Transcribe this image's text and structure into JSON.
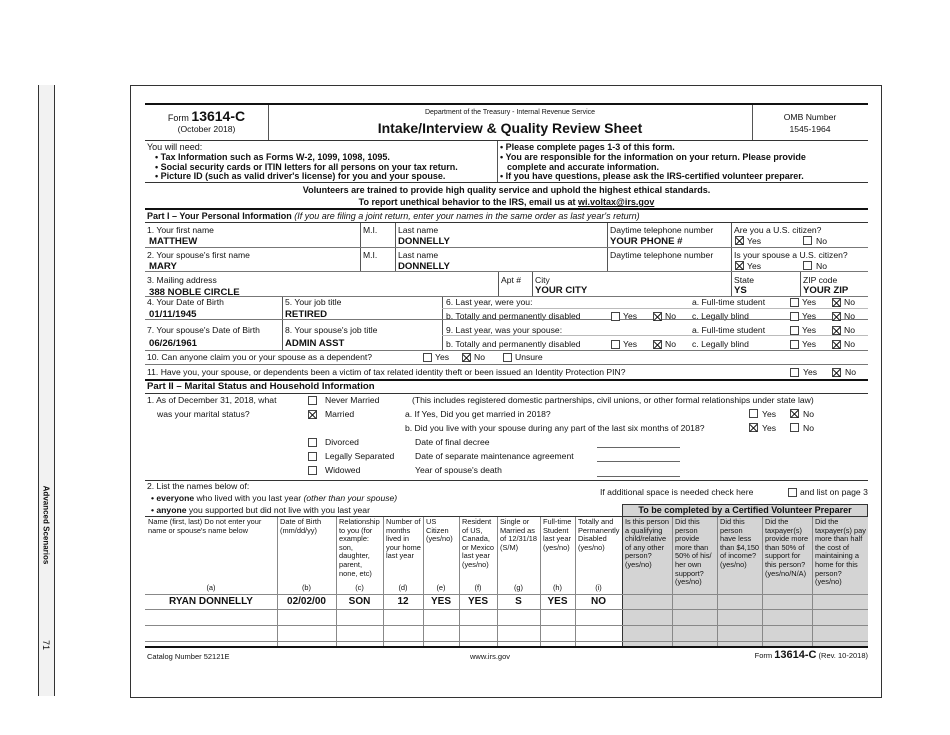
{
  "margin": {
    "section": "Advanced Scenarios",
    "page": "71"
  },
  "header": {
    "form_label": "Form",
    "form_number": "13614-C",
    "form_date": "(October 2018)",
    "department": "Department of the Treasury - Internal Revenue Service",
    "title": "Intake/Interview & Quality Review Sheet",
    "omb_label": "OMB Number",
    "omb_number": "1545-1964"
  },
  "need": {
    "heading": "You will need:",
    "items": [
      "• Tax Information such as Forms W-2, 1099, 1098, 1095.",
      "• Social security cards or ITIN letters for all persons on your tax return.",
      "• Picture ID (such as valid driver's license) for you and your spouse."
    ],
    "right_items": [
      "• Please complete pages 1-3 of this form.",
      "• You are responsible for the information on your return. Please provide",
      "complete and accurate information.",
      "• If you have questions, please ask the IRS-certified volunteer preparer."
    ]
  },
  "volunteers": {
    "line1": "Volunteers are trained to provide high quality service and uphold the highest ethical standards.",
    "line2": "To report unethical behavior to the IRS, email us at",
    "email": "wi.voltax@irs.gov"
  },
  "part1": {
    "title": "Part I – Your Personal Information",
    "note": "(If you are filing a joint return, enter your names in the same order as last year's return)",
    "first_name_label": "1. Your first name",
    "first_name": "MATTHEW",
    "mi_label": "M.I.",
    "last_name_label": "Last name",
    "last_name": "DONNELLY",
    "phone_label": "Daytime telephone number",
    "phone": "YOUR PHONE #",
    "citizen_label": "Are you a U.S. citizen?",
    "citizen_yes": true,
    "citizen_no": false,
    "spouse_first_label": "2. Your spouse's first name",
    "spouse_first": "MARY",
    "spouse_last": "DONNELLY",
    "spouse_citizen_label": "Is your spouse a U.S. citizen?",
    "spouse_citizen_yes": true,
    "spouse_citizen_no": false,
    "address_label": "3. Mailing address",
    "address": "388 NOBLE CIRCLE",
    "apt_label": "Apt #",
    "city_label": "City",
    "city": "YOUR CITY",
    "state_label": "State",
    "state": "YS",
    "zip_label": "ZIP code",
    "zip": "YOUR ZIP",
    "dob_label": "4. Your Date of Birth",
    "dob": "01/11/1945",
    "job_label": "5. Your job title",
    "job": "RETIRED",
    "last_year_label": "6. Last year, were you:",
    "student_label": "a. Full-time student",
    "disabled_label": "b. Totally and permanently disabled",
    "blind_label": "c. Legally blind",
    "you_student": false,
    "you_disabled": false,
    "you_blind": false,
    "spouse_dob_label": "7. Your spouse's Date of Birth",
    "spouse_dob": "06/26/1961",
    "spouse_job_label": "8. Your spouse's job title",
    "spouse_job": "ADMIN ASST",
    "spouse_last_year_label": "9. Last year, was your spouse:",
    "spouse_student": false,
    "spouse_disabled": false,
    "spouse_blind": false,
    "dependent_q": "10. Can anyone claim you or your spouse as a dependent?",
    "dependent_answer": "No",
    "unsure": "Unsure",
    "identity_q": "11. Have you, your spouse, or dependents been a victim of tax related identity theft or been issued an Identity Protection PIN?",
    "identity_theft": false
  },
  "labels": {
    "yes": "Yes",
    "no": "No"
  },
  "part2": {
    "title": "Part II – Marital Status and Household Information",
    "q1a": "1. As of December 31, 2018, what",
    "q1b": "was your marital status?",
    "statuses": [
      {
        "label": "Never Married",
        "checked": false
      },
      {
        "label": "Married",
        "checked": true
      },
      {
        "label": "Divorced",
        "checked": false
      },
      {
        "label": "Legally Separated",
        "checked": false
      },
      {
        "label": "Widowed",
        "checked": false
      }
    ],
    "includes_note": "(This includes registered domestic partnerships, civil unions, or other formal relationships under state law)",
    "married_2018_q": "a. If Yes, Did you get married in 2018?",
    "married_2018": false,
    "lived_with_spouse_q": "b. Did you live with your spouse during any part of the last six months of 2018?",
    "lived_with_spouse": true,
    "final_decree": "Date of final decree",
    "separate_agreement": "Date of separate maintenance agreement",
    "spouse_death": "Year of spouse's death",
    "q2": "2. List the names below of:",
    "q2_everyone_b": "• everyone",
    "q2_everyone": "who lived with you last year",
    "q2_everyone_i": "(other than your spouse)",
    "q2_anyone_b": "• anyone",
    "q2_anyone": "you supported but did not live with you last year",
    "additional_a": "If additional space is needed check here",
    "additional_b": "and list on page 3",
    "additional_checked": false,
    "preparer_header": "To be completed by a Certified Volunteer Preparer"
  },
  "table": {
    "columns": [
      {
        "text": "Name (first, last) Do not enter your name or spouse's name below",
        "letter": "(a)"
      },
      {
        "text": "Date of Birth (mm/dd/yy)",
        "letter": "(b)"
      },
      {
        "text": "Relationship to you (for example: son, daughter, parent, none, etc)",
        "letter": "(c)"
      },
      {
        "text": "Number of months lived in your home last year",
        "letter": "(d)"
      },
      {
        "text": "US Citizen (yes/no)",
        "letter": "(e)"
      },
      {
        "text": "Resident of US, Canada, or Mexico last year (yes/no)",
        "letter": "(f)"
      },
      {
        "text": "Single or Married as of 12/31/18 (S/M)",
        "letter": "(g)"
      },
      {
        "text": "Full-time Student last year (yes/no)",
        "letter": "(h)"
      },
      {
        "text": "Totally and Permanently Disabled (yes/no)",
        "letter": "(i)"
      },
      {
        "text": "Is this person a qualifying child/relative of any other person? (yes/no)",
        "letter": ""
      },
      {
        "text": "Did this person provide more than 50% of his/ her own support? (yes/no)",
        "letter": ""
      },
      {
        "text": "Did this person have less than $4,150 of income? (yes/no)",
        "letter": ""
      },
      {
        "text": "Did the taxpayer(s) provide more than 50% of support for this person? (yes/no/N/A)",
        "letter": ""
      },
      {
        "text": "Did the taxpayer(s) pay more than half the cost of maintaining a home for this person? (yes/no)",
        "letter": ""
      }
    ],
    "rows": [
      [
        "RYAN DONNELLY",
        "02/02/00",
        "SON",
        "12",
        "YES",
        "YES",
        "S",
        "YES",
        "NO",
        "",
        "",
        "",
        "",
        ""
      ]
    ]
  },
  "footer": {
    "catalog": "Catalog Number 52121E",
    "website": "www.irs.gov",
    "form_label": "Form",
    "form_number": "13614-C",
    "revision": "(Rev. 10-2018)"
  }
}
